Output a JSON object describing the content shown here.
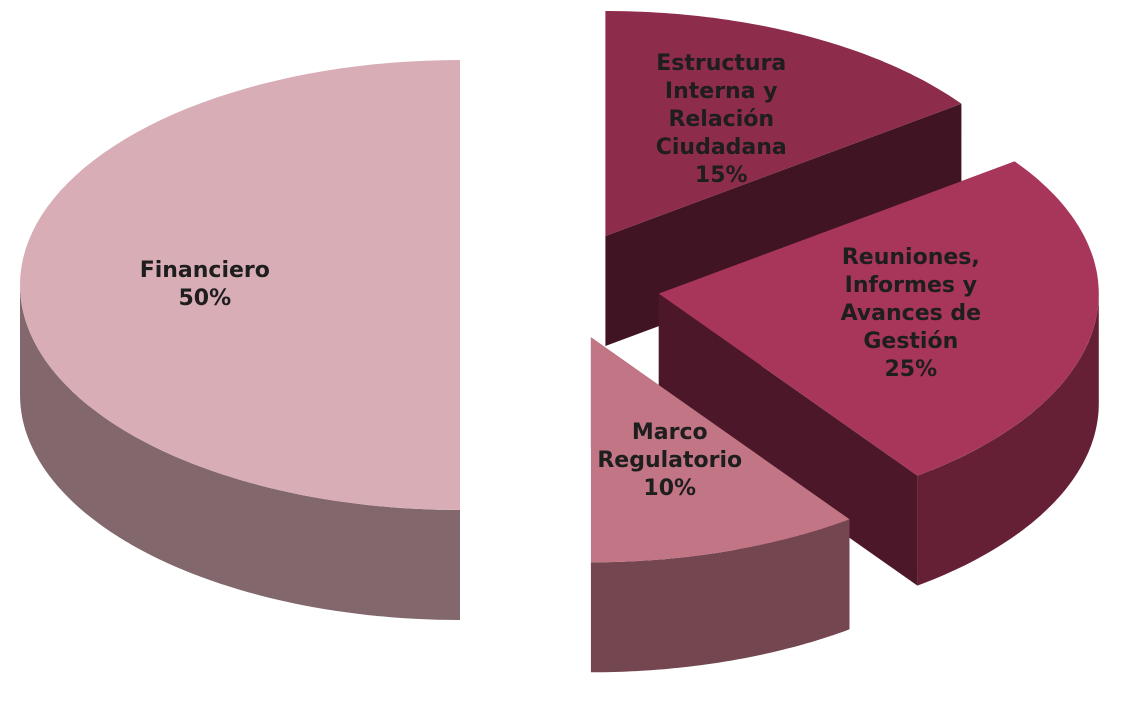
{
  "chart_data": {
    "type": "pie",
    "categories": [
      "Estructura Interna y Relación Ciudadana",
      "Reuniones, Informes y Avances de Gestión",
      "Marco Regulatorio",
      "Financiero"
    ],
    "values": [
      15,
      25,
      10,
      50
    ],
    "value_labels": [
      "15%",
      "25%",
      "10%",
      "50%"
    ],
    "colors": [
      "#8e2c4c",
      "#a8365a",
      "#c27585",
      "#d8adb6"
    ]
  }
}
